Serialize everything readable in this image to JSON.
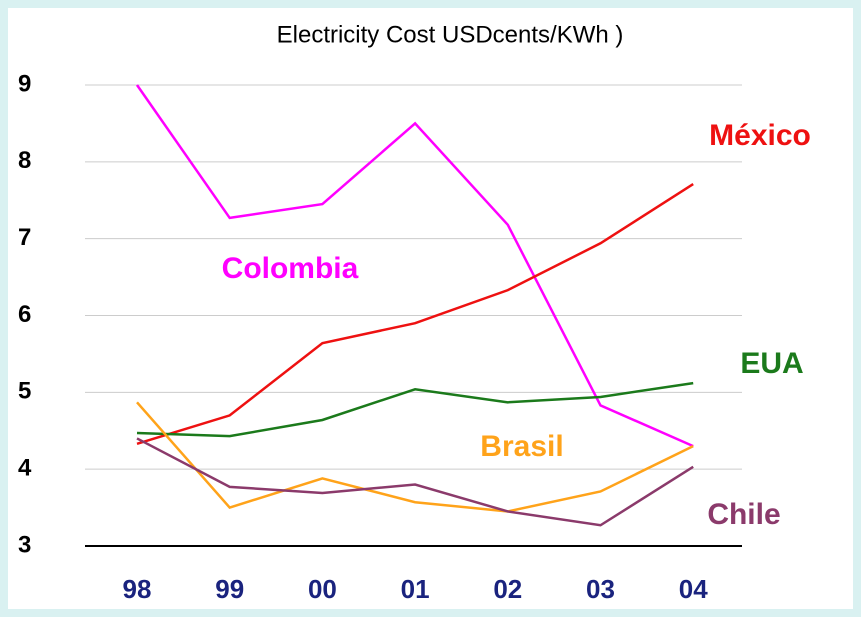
{
  "chart_data": {
    "type": "line",
    "title": "Electricity Cost USDcents/KWh )",
    "categories": [
      "98",
      "99",
      "00",
      "01",
      "02",
      "03",
      "04"
    ],
    "series": [
      {
        "name": "Colombia",
        "color": "#ff00ff",
        "values": [
          9.0,
          7.27,
          7.45,
          8.5,
          7.18,
          4.83,
          4.3
        ]
      },
      {
        "name": "México",
        "color": "#ee1111",
        "values": [
          4.33,
          4.7,
          5.64,
          5.9,
          6.33,
          6.94,
          7.71
        ]
      },
      {
        "name": "EUA",
        "color": "#1b7a1b",
        "values": [
          4.47,
          4.43,
          4.64,
          5.04,
          4.87,
          4.94,
          5.12
        ]
      },
      {
        "name": "Brasil",
        "color": "#ffa31a",
        "values": [
          4.87,
          3.5,
          3.88,
          3.57,
          3.45,
          3.71,
          4.3
        ]
      },
      {
        "name": "Chile",
        "color": "#8b3a6b",
        "values": [
          4.4,
          3.77,
          3.69,
          3.8,
          3.45,
          3.27,
          4.03
        ]
      }
    ],
    "ylim": [
      3,
      9
    ],
    "yticks": [
      3,
      4,
      5,
      6,
      7,
      8,
      9
    ],
    "grid": true
  }
}
